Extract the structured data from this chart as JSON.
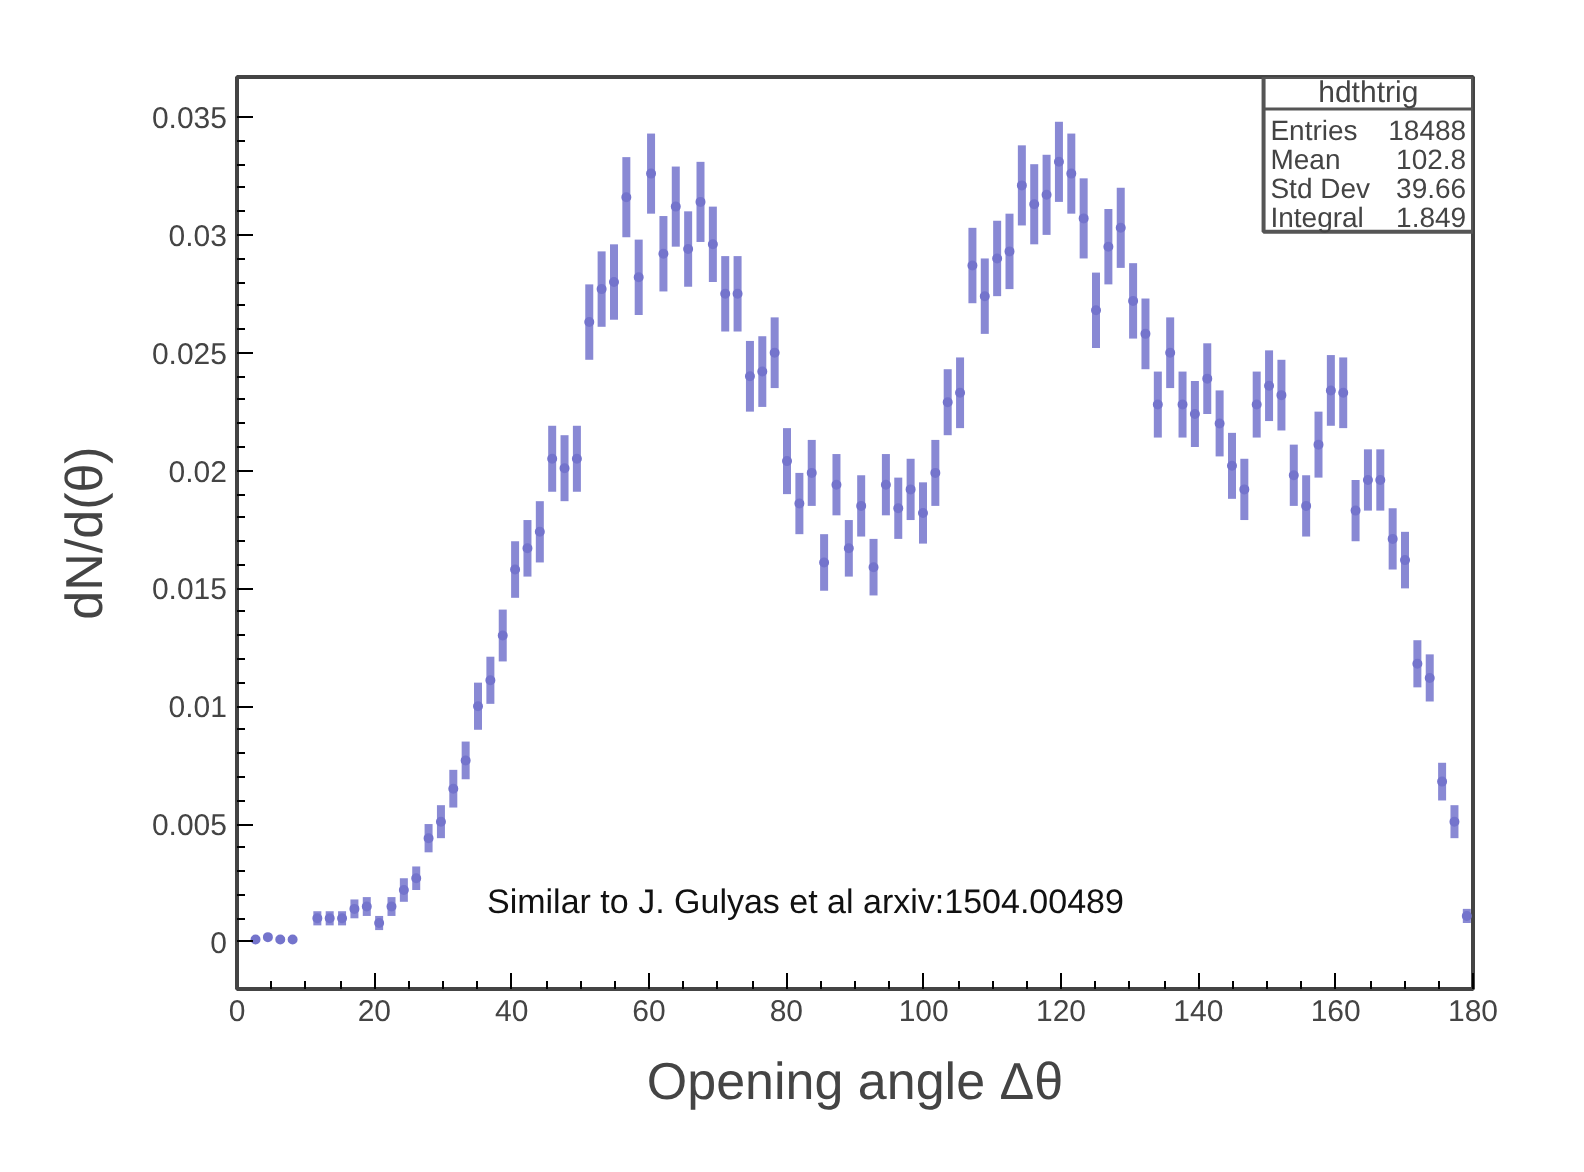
{
  "chart_data": {
    "type": "scatter",
    "xlabel": "Opening angle Δθ",
    "ylabel": "dN/d(θ)",
    "annotations": [
      "Similar to J. Gulyas et al arxiv:1504.00489",
      "hdthtrig",
      "Entries 18488",
      "Mean 102.8",
      "Std Dev 39.66",
      "Integral 1.849"
    ],
    "xlim": [
      0,
      180
    ],
    "ylim": [
      -0.002,
      0.0367
    ],
    "xticks": [
      0,
      20,
      40,
      60,
      80,
      100,
      120,
      140,
      160,
      180
    ],
    "yticks": [
      0,
      {
        "value": 0.005,
        "label": "0.005"
      },
      {
        "value": 0.01,
        "label": "0.01"
      },
      {
        "value": 0.015,
        "label": "0.015"
      },
      {
        "value": 0.02,
        "label": "0.02"
      },
      {
        "value": 0.025,
        "label": "0.025"
      },
      {
        "value": 0.03,
        "label": "0.03"
      },
      {
        "value": 0.035,
        "label": "0.035"
      }
    ],
    "grid": false,
    "marker": "circle",
    "series": [
      {
        "color": "#7474cc",
        "x": [
          2.7,
          4.5,
          6.3,
          8.1,
          11.7,
          13.5,
          15.3,
          17.1,
          18.9,
          20.7,
          22.5,
          24.3,
          26.1,
          27.9,
          29.7,
          31.5,
          33.3,
          35.1,
          36.9,
          38.7,
          40.5,
          42.3,
          44.1,
          45.9,
          47.7,
          49.5,
          51.3,
          53.1,
          54.9,
          56.7,
          58.5,
          60.3,
          62.1,
          63.9,
          65.7,
          67.5,
          69.3,
          71.1,
          72.9,
          74.7,
          76.5,
          78.3,
          80.1,
          81.9,
          83.7,
          85.5,
          87.3,
          89.1,
          90.9,
          92.7,
          94.5,
          96.3,
          98.1,
          99.9,
          101.7,
          103.5,
          105.3,
          107.1,
          108.9,
          110.7,
          112.5,
          114.3,
          116.1,
          117.9,
          119.7,
          121.5,
          123.3,
          125.1,
          126.9,
          128.7,
          130.5,
          132.3,
          134.1,
          135.9,
          137.7,
          139.5,
          141.3,
          143.1,
          144.9,
          146.7,
          148.5,
          150.3,
          152.1,
          153.9,
          155.7,
          157.5,
          159.3,
          161.1,
          162.9,
          164.7,
          166.5,
          168.3,
          170.1,
          171.9,
          173.7,
          175.5,
          177.3,
          179.1
        ],
        "values": [
          0.0001,
          0.0002,
          0.0001,
          0.0001,
          0.001,
          0.001,
          0.001,
          0.0014,
          0.0015,
          0.0008,
          0.0015,
          0.0022,
          0.0027,
          0.0044,
          0.0051,
          0.0065,
          0.0077,
          0.01,
          0.0111,
          0.013,
          0.0158,
          0.0167,
          0.0174,
          0.0205,
          0.0201,
          0.0205,
          0.0263,
          0.0277,
          0.028,
          0.0316,
          0.0282,
          0.0326,
          0.0292,
          0.0312,
          0.0294,
          0.0314,
          0.0296,
          0.0275,
          0.0275,
          0.024,
          0.0242,
          0.025,
          0.0204,
          0.0186,
          0.0199,
          0.0161,
          0.0194,
          0.0167,
          0.0185,
          0.0159,
          0.0194,
          0.0184,
          0.0192,
          0.0182,
          0.0199,
          0.0229,
          0.0233,
          0.0287,
          0.0274,
          0.029,
          0.0293,
          0.0321,
          0.0313,
          0.0317,
          0.0331,
          0.0326,
          0.0307,
          0.0268,
          0.0295,
          0.0303,
          0.0272,
          0.0258,
          0.0228,
          0.025,
          0.0228,
          0.0224,
          0.0239,
          0.022,
          0.0202,
          0.0192,
          0.0228,
          0.0236,
          0.0232,
          0.0198,
          0.0185,
          0.0211,
          0.0234,
          0.0233,
          0.0183,
          0.0196,
          0.0196,
          0.0171,
          0.0162,
          0.0118,
          0.0112,
          0.0068,
          0.0051,
          0.0011
        ],
        "errors": [
          0.0001,
          0.0001,
          0.0001,
          0.0001,
          0.0003,
          0.0003,
          0.0003,
          0.0004,
          0.0004,
          0.0003,
          0.0004,
          0.0005,
          0.0005,
          0.0006,
          0.0007,
          0.0008,
          0.0008,
          0.001,
          0.001,
          0.0011,
          0.0012,
          0.0012,
          0.0013,
          0.0014,
          0.0014,
          0.0014,
          0.0016,
          0.0016,
          0.0016,
          0.0017,
          0.0016,
          0.0017,
          0.0016,
          0.0017,
          0.0016,
          0.0017,
          0.0016,
          0.0016,
          0.0016,
          0.0015,
          0.0015,
          0.0015,
          0.0014,
          0.0013,
          0.0014,
          0.0012,
          0.0013,
          0.0012,
          0.0013,
          0.0012,
          0.0013,
          0.0013,
          0.0013,
          0.0013,
          0.0014,
          0.0014,
          0.0015,
          0.0016,
          0.0016,
          0.0016,
          0.0016,
          0.0017,
          0.0017,
          0.0017,
          0.0017,
          0.0017,
          0.0017,
          0.0016,
          0.0016,
          0.0017,
          0.0016,
          0.0015,
          0.0014,
          0.0015,
          0.0014,
          0.0014,
          0.0015,
          0.0014,
          0.0014,
          0.0013,
          0.0014,
          0.0015,
          0.0015,
          0.0013,
          0.0013,
          0.0014,
          0.0015,
          0.0015,
          0.0013,
          0.0013,
          0.0013,
          0.0013,
          0.0012,
          0.001,
          0.001,
          0.0008,
          0.0007,
          0.0003
        ]
      }
    ]
  }
}
